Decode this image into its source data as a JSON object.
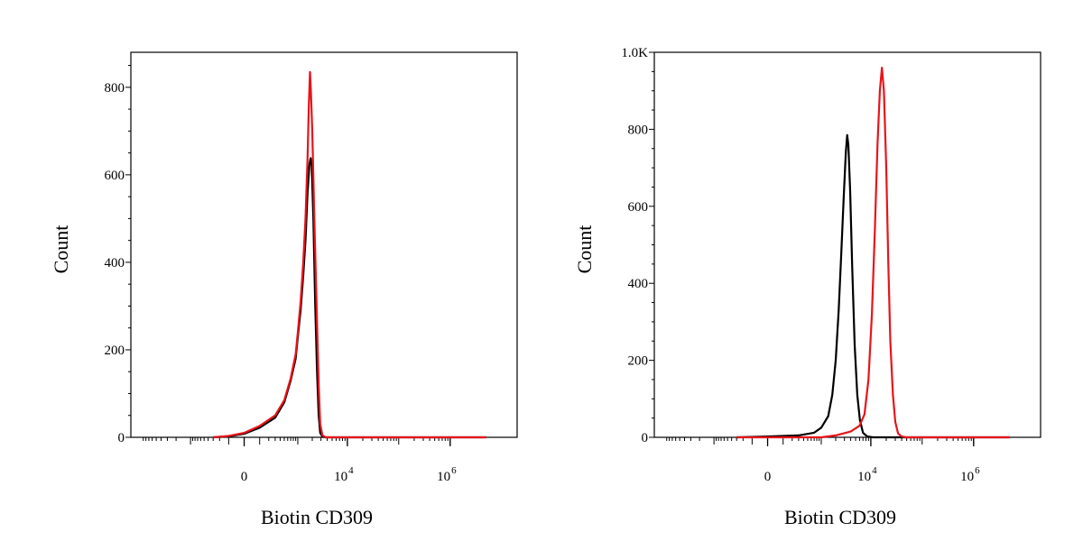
{
  "chart_data": [
    {
      "type": "line",
      "chart": "histogram",
      "xlabel": "Biotin CD309",
      "ylabel": "Count",
      "ylim": [
        0,
        880
      ],
      "x_scale": "biexponential",
      "x_ticks": [
        {
          "value": 0,
          "label": "0"
        },
        {
          "value": 10000,
          "label": "10",
          "exp": "4"
        },
        {
          "value": 1000000,
          "label": "10",
          "exp": "6"
        }
      ],
      "y_ticks": [
        {
          "value": 0,
          "label": "0"
        },
        {
          "value": 200,
          "label": "200"
        },
        {
          "value": 400,
          "label": "400"
        },
        {
          "value": 600,
          "label": "600"
        },
        {
          "value": 800,
          "label": "800"
        }
      ],
      "series": [
        {
          "color": "#000000",
          "points": [
            [
              -300,
              0
            ],
            [
              -100,
              2
            ],
            [
              0,
              8
            ],
            [
              100,
              22
            ],
            [
              300,
              45
            ],
            [
              500,
              80
            ],
            [
              700,
              130
            ],
            [
              900,
              180
            ],
            [
              1000,
              230
            ],
            [
              1150,
              290
            ],
            [
              1300,
              370
            ],
            [
              1450,
              450
            ],
            [
              1600,
              560
            ],
            [
              1750,
              625
            ],
            [
              1850,
              638
            ],
            [
              1950,
              620
            ],
            [
              2100,
              500
            ],
            [
              2300,
              300
            ],
            [
              2500,
              150
            ],
            [
              2700,
              50
            ],
            [
              2900,
              10
            ],
            [
              3200,
              2
            ],
            [
              3600,
              0
            ],
            [
              5000000,
              0
            ]
          ]
        },
        {
          "color": "#e8141a",
          "points": [
            [
              -300,
              0
            ],
            [
              -100,
              3
            ],
            [
              0,
              10
            ],
            [
              100,
              26
            ],
            [
              300,
              50
            ],
            [
              500,
              85
            ],
            [
              700,
              135
            ],
            [
              900,
              190
            ],
            [
              1000,
              240
            ],
            [
              1150,
              310
            ],
            [
              1300,
              400
            ],
            [
              1450,
              500
            ],
            [
              1600,
              640
            ],
            [
              1700,
              760
            ],
            [
              1800,
              835
            ],
            [
              1880,
              790
            ],
            [
              2000,
              700
            ],
            [
              2200,
              500
            ],
            [
              2450,
              300
            ],
            [
              2700,
              120
            ],
            [
              2900,
              30
            ],
            [
              3200,
              5
            ],
            [
              3700,
              0
            ],
            [
              5000000,
              0
            ]
          ]
        }
      ]
    },
    {
      "type": "line",
      "chart": "histogram",
      "xlabel": "Biotin CD309",
      "ylabel": "Count",
      "ylim": [
        0,
        1000
      ],
      "x_scale": "biexponential",
      "x_ticks": [
        {
          "value": 0,
          "label": "0"
        },
        {
          "value": 10000,
          "label": "10",
          "exp": "4"
        },
        {
          "value": 1000000,
          "label": "10",
          "exp": "6"
        }
      ],
      "y_ticks": [
        {
          "value": 0,
          "label": "0"
        },
        {
          "value": 200,
          "label": "200"
        },
        {
          "value": 400,
          "label": "400"
        },
        {
          "value": 600,
          "label": "600"
        },
        {
          "value": 800,
          "label": "800"
        },
        {
          "value": 1000,
          "label": "1.0K"
        }
      ],
      "series": [
        {
          "color": "#000000",
          "points": [
            [
              -300,
              0
            ],
            [
              0,
              2
            ],
            [
              300,
              5
            ],
            [
              700,
              12
            ],
            [
              1000,
              25
            ],
            [
              1400,
              55
            ],
            [
              1700,
              110
            ],
            [
              2000,
              200
            ],
            [
              2300,
              330
            ],
            [
              2600,
              480
            ],
            [
              2900,
              620
            ],
            [
              3200,
              740
            ],
            [
              3400,
              785
            ],
            [
              3600,
              760
            ],
            [
              3900,
              640
            ],
            [
              4300,
              440
            ],
            [
              4800,
              240
            ],
            [
              5400,
              110
            ],
            [
              6100,
              45
            ],
            [
              7000,
              12
            ],
            [
              8500,
              2
            ],
            [
              11000,
              0
            ],
            [
              5000000,
              0
            ]
          ]
        },
        {
          "color": "#e8141a",
          "points": [
            [
              -300,
              0
            ],
            [
              1000,
              0
            ],
            [
              2000,
              5
            ],
            [
              4000,
              15
            ],
            [
              6000,
              30
            ],
            [
              7500,
              60
            ],
            [
              9000,
              150
            ],
            [
              10500,
              320
            ],
            [
              12000,
              540
            ],
            [
              13500,
              760
            ],
            [
              15000,
              900
            ],
            [
              16500,
              960
            ],
            [
              18000,
              900
            ],
            [
              20000,
              700
            ],
            [
              22000,
              450
            ],
            [
              24000,
              250
            ],
            [
              27000,
              110
            ],
            [
              30000,
              40
            ],
            [
              34000,
              10
            ],
            [
              40000,
              2
            ],
            [
              48000,
              0
            ],
            [
              5000000,
              0
            ]
          ]
        }
      ]
    }
  ]
}
